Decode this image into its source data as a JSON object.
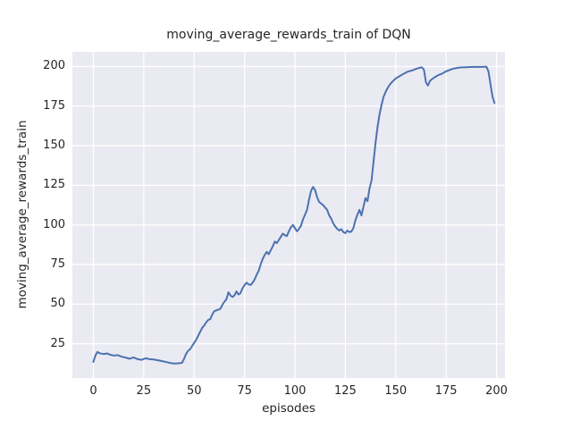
{
  "chart_data": {
    "type": "line",
    "title": "moving_average_rewards_train of DQN",
    "xlabel": "episodes",
    "ylabel": "moving_average_rewards_train",
    "xticks": [
      0,
      25,
      50,
      75,
      100,
      125,
      150,
      175,
      200
    ],
    "yticks": [
      25,
      50,
      75,
      100,
      125,
      150,
      175,
      200
    ],
    "xlim": [
      -10.4,
      204.2
    ],
    "ylim": [
      3.3,
      209.3
    ],
    "grid": true,
    "legend_position": "none",
    "colors": {
      "line": "#4c72b0",
      "plot_background": "#eaeaf2",
      "gridline": "#ffffff",
      "text": "#262626",
      "figure_background": "#ffffff"
    },
    "series": [
      {
        "name": "moving_average_rewards_train",
        "color": "#4c72b0",
        "points": [
          [
            0,
            13.5
          ],
          [
            1,
            17.5
          ],
          [
            2,
            19.8
          ],
          [
            3,
            19.0
          ],
          [
            5,
            18.5
          ],
          [
            7,
            18.8
          ],
          [
            8,
            18.2
          ],
          [
            10,
            17.5
          ],
          [
            12,
            17.8
          ],
          [
            14,
            16.8
          ],
          [
            16,
            16.2
          ],
          [
            18,
            15.5
          ],
          [
            20,
            16.3
          ],
          [
            22,
            15.2
          ],
          [
            24,
            14.8
          ],
          [
            26,
            15.8
          ],
          [
            28,
            15.2
          ],
          [
            30,
            15.0
          ],
          [
            32,
            14.5
          ],
          [
            34,
            14.0
          ],
          [
            36,
            13.5
          ],
          [
            38,
            12.8
          ],
          [
            40,
            12.5
          ],
          [
            42,
            12.6
          ],
          [
            44,
            12.9
          ],
          [
            45,
            15.5
          ],
          [
            46,
            18.5
          ],
          [
            47,
            20.5
          ],
          [
            48,
            21.5
          ],
          [
            49,
            23.5
          ],
          [
            50,
            25.5
          ],
          [
            51,
            27.5
          ],
          [
            52,
            30.0
          ],
          [
            53,
            32.5
          ],
          [
            54,
            35.0
          ],
          [
            55,
            36.5
          ],
          [
            56,
            38.5
          ],
          [
            57,
            40.0
          ],
          [
            58,
            40.5
          ],
          [
            59,
            43.5
          ],
          [
            60,
            45.5
          ],
          [
            61,
            46.0
          ],
          [
            62,
            46.5
          ],
          [
            63,
            47.0
          ],
          [
            64,
            49.5
          ],
          [
            65,
            51.5
          ],
          [
            66,
            53.0
          ],
          [
            67,
            57.5
          ],
          [
            68,
            55.5
          ],
          [
            69,
            54.5
          ],
          [
            70,
            55.5
          ],
          [
            71,
            58.0
          ],
          [
            72,
            56.0
          ],
          [
            73,
            57.0
          ],
          [
            74,
            60.0
          ],
          [
            75,
            62.0
          ],
          [
            76,
            63.5
          ],
          [
            77,
            62.5
          ],
          [
            78,
            62.0
          ],
          [
            79,
            63.5
          ],
          [
            80,
            65.5
          ],
          [
            81,
            68.5
          ],
          [
            82,
            71.0
          ],
          [
            83,
            75.0
          ],
          [
            84,
            78.5
          ],
          [
            85,
            81.0
          ],
          [
            86,
            83.0
          ],
          [
            87,
            81.5
          ],
          [
            88,
            84.0
          ],
          [
            89,
            86.5
          ],
          [
            90,
            89.5
          ],
          [
            91,
            88.5
          ],
          [
            92,
            90.5
          ],
          [
            93,
            92.5
          ],
          [
            94,
            94.5
          ],
          [
            95,
            93.5
          ],
          [
            96,
            93.0
          ],
          [
            97,
            96.0
          ],
          [
            98,
            98.5
          ],
          [
            99,
            100.0
          ],
          [
            100,
            98.0
          ],
          [
            101,
            96.0
          ],
          [
            102,
            97.5
          ],
          [
            103,
            99.5
          ],
          [
            104,
            103.5
          ],
          [
            105,
            106.5
          ],
          [
            106,
            109.5
          ],
          [
            107,
            116.0
          ],
          [
            108,
            121.5
          ],
          [
            109,
            124.0
          ],
          [
            110,
            122.0
          ],
          [
            111,
            117.5
          ],
          [
            112,
            114.5
          ],
          [
            113,
            113.5
          ],
          [
            114,
            112.5
          ],
          [
            115,
            111.0
          ],
          [
            116,
            109.5
          ],
          [
            117,
            106.0
          ],
          [
            118,
            104.0
          ],
          [
            119,
            101.0
          ],
          [
            120,
            99.0
          ],
          [
            121,
            97.5
          ],
          [
            122,
            96.5
          ],
          [
            123,
            97.3
          ],
          [
            124,
            95.5
          ],
          [
            125,
            94.8
          ],
          [
            126,
            96.4
          ],
          [
            127,
            95.5
          ],
          [
            128,
            95.8
          ],
          [
            129,
            98.0
          ],
          [
            130,
            103.0
          ],
          [
            131,
            106.5
          ],
          [
            132,
            109.5
          ],
          [
            133,
            106.0
          ],
          [
            134,
            111.5
          ],
          [
            135,
            117.0
          ],
          [
            136,
            115.0
          ],
          [
            137,
            123.0
          ],
          [
            138,
            128.0
          ],
          [
            139,
            140.0
          ],
          [
            140,
            152.0
          ],
          [
            141,
            162.0
          ],
          [
            142,
            170.0
          ],
          [
            143,
            176.0
          ],
          [
            144,
            181.0
          ],
          [
            145,
            184.0
          ],
          [
            146,
            186.5
          ],
          [
            147,
            188.5
          ],
          [
            148,
            190.0
          ],
          [
            150,
            192.5
          ],
          [
            152,
            194.0
          ],
          [
            154,
            195.5
          ],
          [
            156,
            196.8
          ],
          [
            158,
            197.5
          ],
          [
            160,
            198.5
          ],
          [
            162,
            199.3
          ],
          [
            163,
            199.5
          ],
          [
            164,
            198.0
          ],
          [
            165,
            190.0
          ],
          [
            166,
            188.0
          ],
          [
            167,
            191.0
          ],
          [
            168,
            192.0
          ],
          [
            169,
            193.0
          ],
          [
            171,
            194.5
          ],
          [
            173,
            195.5
          ],
          [
            175,
            197.0
          ],
          [
            177,
            198.0
          ],
          [
            179,
            198.8
          ],
          [
            181,
            199.3
          ],
          [
            183,
            199.5
          ],
          [
            185,
            199.6
          ],
          [
            187,
            199.7
          ],
          [
            189,
            199.8
          ],
          [
            191,
            199.8
          ],
          [
            193,
            199.8
          ],
          [
            195,
            199.9
          ],
          [
            196,
            197.0
          ],
          [
            197,
            189.0
          ],
          [
            198,
            181.0
          ],
          [
            199,
            177.0
          ]
        ]
      }
    ]
  }
}
